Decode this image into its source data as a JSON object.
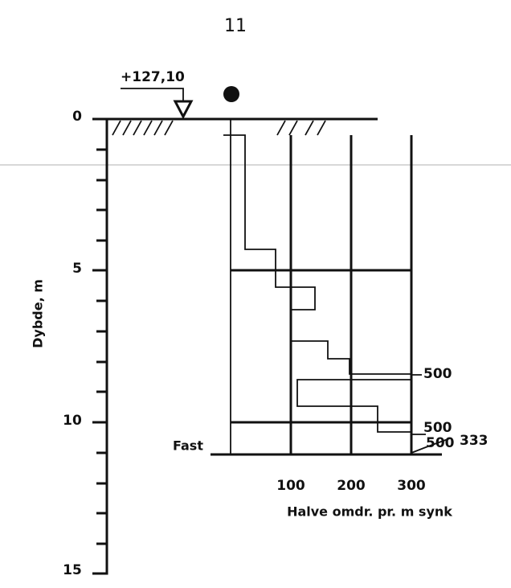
{
  "page_number": "11",
  "elevation": "+127,10",
  "depth_axis": {
    "label": "Dybde, m",
    "ticks": [
      "0",
      "5",
      "10",
      "15"
    ]
  },
  "x_axis": {
    "label": "Halve omdr. pr. m synk",
    "ticks": [
      "100",
      "200",
      "300"
    ]
  },
  "annotations": {
    "stop": "Fast",
    "values": [
      "500",
      "500",
      "333",
      "500"
    ]
  }
}
